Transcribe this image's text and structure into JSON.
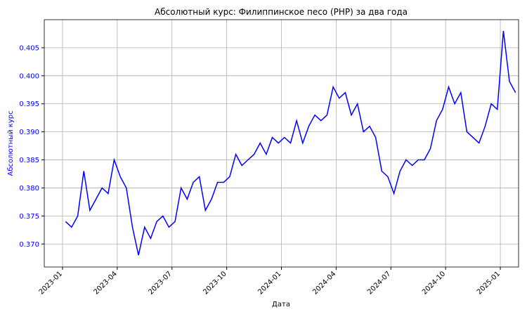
{
  "chart_data": {
    "type": "line",
    "title": "Абсолютный курс: Филиппинское песо (PHP) за два года",
    "x_label": "Дата",
    "y_label": "Абсолютный курс",
    "color": "#0000ff",
    "grid": true,
    "x": [
      "2023-01",
      "2023-01",
      "2023-01",
      "2023-02",
      "2023-02",
      "2023-02",
      "2023-03",
      "2023-03",
      "2023-03",
      "2023-04",
      "2023-04",
      "2023-04",
      "2023-05",
      "2023-05",
      "2023-05",
      "2023-06",
      "2023-06",
      "2023-06",
      "2023-07",
      "2023-07",
      "2023-07",
      "2023-08",
      "2023-08",
      "2023-08",
      "2023-09",
      "2023-09",
      "2023-09",
      "2023-10",
      "2023-10",
      "2023-10",
      "2023-11",
      "2023-11",
      "2023-11",
      "2023-12",
      "2023-12",
      "2023-12",
      "2024-01",
      "2024-01",
      "2024-01",
      "2024-02",
      "2024-02",
      "2024-02",
      "2024-03",
      "2024-03",
      "2024-03",
      "2024-04",
      "2024-04",
      "2024-04",
      "2024-05",
      "2024-05",
      "2024-05",
      "2024-06",
      "2024-06",
      "2024-06",
      "2024-07",
      "2024-07",
      "2024-07",
      "2024-08",
      "2024-08",
      "2024-08",
      "2024-09",
      "2024-09",
      "2024-09",
      "2024-10",
      "2024-10",
      "2024-10",
      "2024-11",
      "2024-11",
      "2024-11",
      "2024-12",
      "2024-12",
      "2024-12",
      "2025-01",
      "2025-01",
      "2025-01"
    ],
    "values": [
      0.374,
      0.373,
      0.375,
      0.383,
      0.376,
      0.378,
      0.38,
      0.379,
      0.385,
      0.382,
      0.38,
      0.373,
      0.368,
      0.373,
      0.371,
      0.374,
      0.375,
      0.373,
      0.374,
      0.38,
      0.378,
      0.381,
      0.382,
      0.376,
      0.378,
      0.381,
      0.381,
      0.382,
      0.386,
      0.384,
      0.385,
      0.386,
      0.388,
      0.386,
      0.389,
      0.388,
      0.389,
      0.388,
      0.392,
      0.388,
      0.391,
      0.393,
      0.392,
      0.393,
      0.398,
      0.396,
      0.397,
      0.393,
      0.395,
      0.39,
      0.391,
      0.389,
      0.383,
      0.382,
      0.379,
      0.383,
      0.385,
      0.384,
      0.385,
      0.385,
      0.387,
      0.392,
      0.394,
      0.398,
      0.395,
      0.397,
      0.39,
      0.389,
      0.388,
      0.391,
      0.395,
      0.394,
      0.408,
      0.399,
      0.397
    ],
    "xlim": [
      "2022-12",
      "2025-02"
    ],
    "xticks": [
      "2023-01",
      "2023-04",
      "2023-07",
      "2023-10",
      "2024-01",
      "2024-04",
      "2024-07",
      "2024-10",
      "2025-01"
    ],
    "ylim": [
      0.3659,
      0.41
    ],
    "yticks": [
      {
        "value": 0.37,
        "label": "0.370"
      },
      {
        "value": 0.375,
        "label": "0.375"
      },
      {
        "value": 0.38,
        "label": "0.380"
      },
      {
        "value": 0.385,
        "label": "0.385"
      },
      {
        "value": 0.39,
        "label": "0.390"
      },
      {
        "value": 0.395,
        "label": "0.395"
      },
      {
        "value": 0.4,
        "label": "0.400"
      },
      {
        "value": 0.405,
        "label": "0.405"
      }
    ]
  }
}
